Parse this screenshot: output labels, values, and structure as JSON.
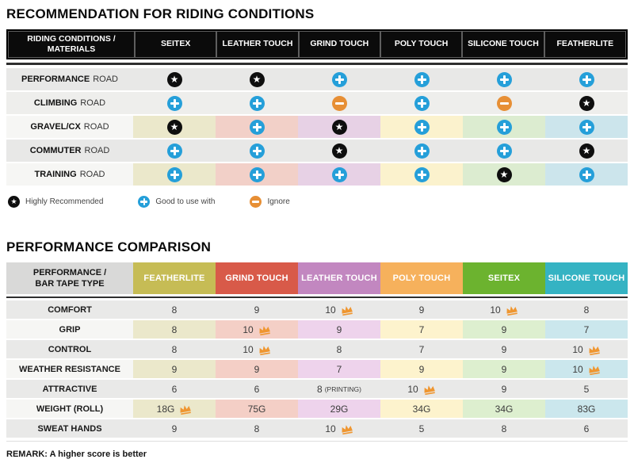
{
  "icon_colors": {
    "star_bg": "#0e0e0e",
    "plus_bg": "#259fd9",
    "minus_bg": "#e78f35",
    "crown": "#ef9630"
  },
  "chart_data": [
    {
      "type": "table",
      "title": "RECOMMENDATION FOR RIDING CONDITIONS",
      "corner_label": "RIDING CONDITIONS / MATERIALS",
      "columns": [
        "SEITEX",
        "LEATHER TOUCH",
        "GRIND TOUCH",
        "POLY TOUCH",
        "SILICONE TOUCH",
        "FEATHERLITE"
      ],
      "column_tints": [
        "#ebe8cb",
        "#f2d0c8",
        "#e7d1e5",
        "#fbf2cd",
        "#dcecd0",
        "#cce5ec"
      ],
      "row_plain_bgs": [
        "#e8e8e7",
        "#eeeeec",
        "",
        "#e8e8e7",
        ""
      ],
      "tinted_label_bg": "#f6f6f4",
      "rows": [
        {
          "label": "PERFORMANCE",
          "label_suffix": "ROAD",
          "tinted": false,
          "cells": [
            "star",
            "star",
            "plus",
            "plus",
            "plus",
            "plus"
          ]
        },
        {
          "label": "CLIMBING",
          "label_suffix": "ROAD",
          "tinted": false,
          "cells": [
            "plus",
            "plus",
            "minus",
            "plus",
            "minus",
            "star"
          ]
        },
        {
          "label": "GRAVEL/CX",
          "label_suffix": "ROAD",
          "tinted": true,
          "cells": [
            "star",
            "plus",
            "star",
            "plus",
            "plus",
            "plus"
          ]
        },
        {
          "label": "COMMUTER",
          "label_suffix": "ROAD",
          "tinted": false,
          "cells": [
            "plus",
            "plus",
            "star",
            "plus",
            "plus",
            "star"
          ]
        },
        {
          "label": "TRAINING",
          "label_suffix": "ROAD",
          "tinted": true,
          "cells": [
            "plus",
            "plus",
            "plus",
            "plus",
            "star",
            "plus"
          ]
        }
      ],
      "legend": [
        {
          "icon": "star",
          "label": "Highly Recommended"
        },
        {
          "icon": "plus",
          "label": "Good to use with"
        },
        {
          "icon": "minus",
          "label": "Ignore"
        }
      ]
    },
    {
      "type": "table",
      "title": "PERFORMANCE COMPARISON",
      "corner_label": "PERFORMANCE / BAR TAPE TYPE",
      "columns": [
        {
          "label": "FEATHERLITE",
          "header_color": "#c6bc55",
          "tint": "#ebe8cb"
        },
        {
          "label": "GRIND TOUCH",
          "header_color": "#d85a49",
          "tint": "#f4cfc6"
        },
        {
          "label": "LEATHER TOUCH",
          "header_color": "#c287c0",
          "tint": "#eed3ec"
        },
        {
          "label": "POLY TOUCH",
          "header_color": "#f6b15c",
          "tint": "#fdf3cd"
        },
        {
          "label": "SEITEX",
          "header_color": "#6cb32f",
          "tint": "#ddefcf"
        },
        {
          "label": "SILICONE TOUCH",
          "header_color": "#35b3c3",
          "tint": "#cbe7ed"
        }
      ],
      "plain_bg": "#e9e9e8",
      "tinted_label_bg": "#f6f6f4",
      "rows": [
        {
          "label": "COMFORT",
          "tinted": false,
          "cells": [
            {
              "v": "8"
            },
            {
              "v": "9"
            },
            {
              "v": "10",
              "crown": true
            },
            {
              "v": "9"
            },
            {
              "v": "10",
              "crown": true
            },
            {
              "v": "8"
            }
          ]
        },
        {
          "label": "GRIP",
          "tinted": true,
          "cells": [
            {
              "v": "8"
            },
            {
              "v": "10",
              "crown": true
            },
            {
              "v": "9"
            },
            {
              "v": "7"
            },
            {
              "v": "9"
            },
            {
              "v": "7"
            }
          ]
        },
        {
          "label": "CONTROL",
          "tinted": false,
          "cells": [
            {
              "v": "8"
            },
            {
              "v": "10",
              "crown": true
            },
            {
              "v": "8"
            },
            {
              "v": "7"
            },
            {
              "v": "9"
            },
            {
              "v": "10",
              "crown": true
            }
          ]
        },
        {
          "label": "WEATHER RESISTANCE",
          "tinted": true,
          "cells": [
            {
              "v": "9"
            },
            {
              "v": "9"
            },
            {
              "v": "7"
            },
            {
              "v": "9"
            },
            {
              "v": "9"
            },
            {
              "v": "10",
              "crown": true
            }
          ]
        },
        {
          "label": "ATTRACTIVE",
          "tinted": false,
          "cells": [
            {
              "v": "6"
            },
            {
              "v": "6"
            },
            {
              "v": "8",
              "note": "(PRINTING)"
            },
            {
              "v": "10",
              "crown": true
            },
            {
              "v": "9"
            },
            {
              "v": "5"
            }
          ]
        },
        {
          "label": "WEIGHT (ROLL)",
          "tinted": true,
          "cells": [
            {
              "v": "18G",
              "crown": true
            },
            {
              "v": "75G"
            },
            {
              "v": "29G"
            },
            {
              "v": "34G"
            },
            {
              "v": "34G"
            },
            {
              "v": "83G"
            }
          ]
        },
        {
          "label": "SWEAT HANDS",
          "tinted": false,
          "cells": [
            {
              "v": "9"
            },
            {
              "v": "8"
            },
            {
              "v": "10",
              "crown": true
            },
            {
              "v": "5"
            },
            {
              "v": "8"
            },
            {
              "v": "6"
            }
          ]
        }
      ],
      "remark": "REMARK: A higher score is better"
    }
  ]
}
